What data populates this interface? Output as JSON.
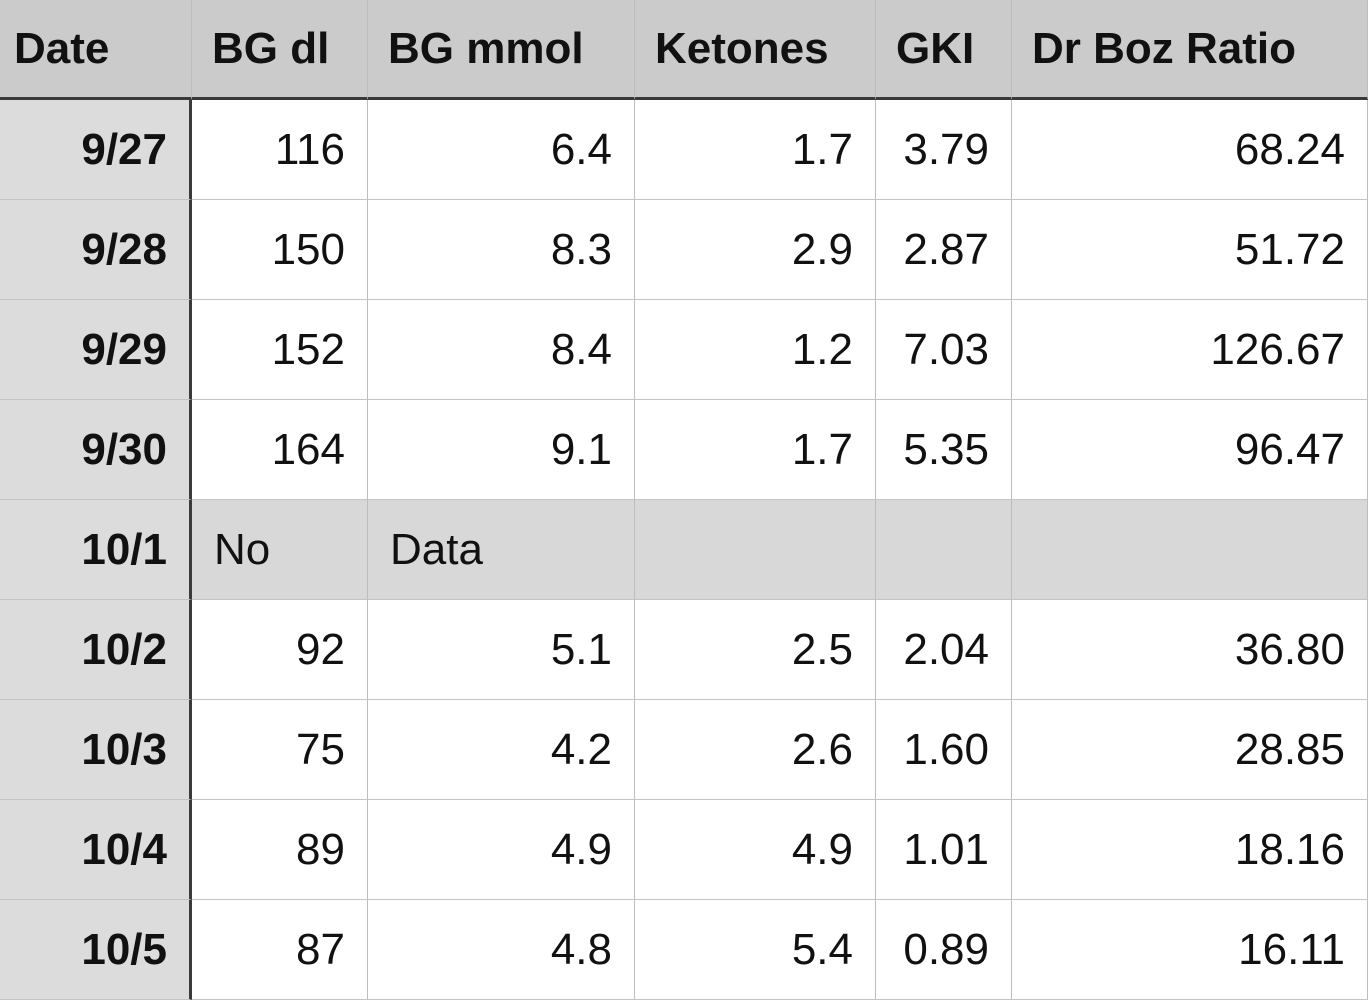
{
  "table": {
    "header": [
      "Date",
      "BG dl",
      "BG mmol",
      "Ketones",
      "GKI",
      "Dr Boz Ratio"
    ],
    "rows": [
      [
        "9/27",
        "116",
        "6.4",
        "1.7",
        "3.79",
        "68.24"
      ],
      [
        "9/28",
        "150",
        "8.3",
        "2.9",
        "2.87",
        "51.72"
      ],
      [
        "9/29",
        "152",
        "8.4",
        "1.2",
        "7.03",
        "126.67"
      ],
      [
        "9/30",
        "164",
        "9.1",
        "1.7",
        "5.35",
        "96.47"
      ],
      [
        "10/1",
        "No",
        "Data"
      ],
      [
        "10/2",
        "92",
        "5.1",
        "2.5",
        "2.04",
        "36.80"
      ],
      [
        "10/3",
        "75",
        "4.2",
        "2.6",
        "1.60",
        "28.85"
      ],
      [
        "10/4",
        "89",
        "4.9",
        "4.9",
        "1.01",
        "18.16"
      ],
      [
        "10/5",
        "87",
        "4.8",
        "5.4",
        "0.89",
        "16.11"
      ]
    ]
  }
}
